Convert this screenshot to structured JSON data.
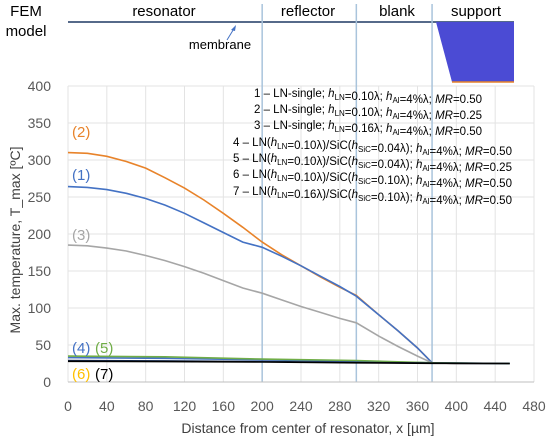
{
  "header": {
    "model_label_line1": "FEM",
    "model_label_line2": "model",
    "regions": [
      "resonator",
      "reflector",
      "blank",
      "support"
    ],
    "membrane_label": "membrane"
  },
  "chart_data": {
    "type": "line",
    "title": "",
    "xlabel": "Distance from center of resonator, x  [µm]",
    "ylabel": "Max. temperature, T_max  [ºC]",
    "xlim": [
      0,
      480
    ],
    "ylim": [
      0,
      400
    ],
    "x_ticks": [
      0,
      40,
      80,
      120,
      160,
      200,
      240,
      280,
      320,
      360,
      400,
      440,
      480
    ],
    "y_ticks": [
      0,
      50,
      100,
      150,
      200,
      250,
      300,
      350,
      400
    ],
    "grid": true,
    "legend_placement": "top-right",
    "region_boundaries": [
      200,
      297,
      375
    ],
    "colors": {
      "orange": "#e8832a",
      "blue": "#4472c4",
      "gray": "#a6a6a6",
      "green": "#70ad47",
      "navy": "#1f3864",
      "yellow": "#ffc000",
      "black": "#000000",
      "boundary": "#a9c4dc",
      "support_fill": "#4b4bd4"
    },
    "legend": [
      "1 – LN-single; hLN=0.10λ; hAl=4%λ; MR=0.50",
      "2 – LN-single; hLN=0.10λ; hAl=4%λ; MR=0.25",
      "3 – LN-single; hLN=0.16λ; hAl=4%λ; MR=0.50",
      "4 – LN(hLN=0.10λ)/SiC(hSiC=0.04λ); hAl=4%λ; MR=0.50",
      "5 – LN(hLN=0.10λ)/SiC(hSiC=0.04λ); hAl=4%λ; MR=0.25",
      "6 – LN(hLN=0.10λ)/SiC(hSiC=0.10λ); hAl=4%λ; MR=0.50",
      "7 – LN(hLN=0.16λ)/SiC(hSiC=0.10λ); hAl=4%λ; MR=0.50"
    ],
    "series": [
      {
        "label": "(2)",
        "color": "#e8832a",
        "x": [
          0,
          20,
          40,
          60,
          80,
          100,
          120,
          140,
          160,
          180,
          200,
          220,
          240,
          260,
          280,
          297,
          320,
          340,
          360,
          375,
          400,
          420,
          440,
          455
        ],
        "y": [
          310,
          309,
          305,
          298,
          289,
          276,
          262,
          246,
          228,
          209,
          189,
          172,
          157,
          142,
          128,
          117,
          91,
          69,
          46,
          26,
          25,
          25,
          25,
          25
        ]
      },
      {
        "label": "(1)",
        "color": "#4472c4",
        "x": [
          0,
          20,
          40,
          60,
          80,
          100,
          120,
          140,
          160,
          180,
          200,
          220,
          240,
          260,
          280,
          297,
          320,
          340,
          360,
          375,
          400,
          420,
          440,
          455
        ],
        "y": [
          264,
          263,
          260,
          255,
          248,
          239,
          228,
          215,
          202,
          189,
          182,
          170,
          157,
          143,
          129,
          116,
          91,
          69,
          46,
          26,
          25,
          25,
          25,
          25
        ]
      },
      {
        "label": "(3)",
        "color": "#a6a6a6",
        "x": [
          0,
          20,
          40,
          60,
          80,
          100,
          120,
          140,
          160,
          180,
          200,
          220,
          240,
          260,
          280,
          297,
          320,
          340,
          360,
          375,
          400,
          420,
          440,
          455
        ],
        "y": [
          185,
          184,
          181,
          177,
          171,
          164,
          156,
          147,
          137,
          127,
          120,
          111,
          102,
          94,
          86,
          80,
          62,
          48,
          35,
          26,
          25,
          25,
          25,
          25
        ]
      },
      {
        "label": "(4)",
        "color": "#4472c4",
        "x": [
          0,
          100,
          200,
          297,
          375,
          455
        ],
        "y": [
          33,
          32,
          30,
          28,
          26,
          25
        ]
      },
      {
        "label": "(5)",
        "color": "#70ad47",
        "x": [
          0,
          100,
          200,
          297,
          375,
          455
        ],
        "y": [
          35,
          34,
          31,
          29,
          26,
          25
        ]
      },
      {
        "label": "(6)",
        "color": "#1f3864",
        "x": [
          0,
          100,
          200,
          297,
          375,
          455
        ],
        "y": [
          29,
          28.5,
          27.5,
          26.5,
          25.5,
          25
        ]
      },
      {
        "label": "(7)",
        "color": "#000000",
        "x": [
          0,
          100,
          200,
          297,
          375,
          455
        ],
        "y": [
          28,
          27.5,
          27,
          26,
          25.3,
          25
        ]
      }
    ]
  }
}
